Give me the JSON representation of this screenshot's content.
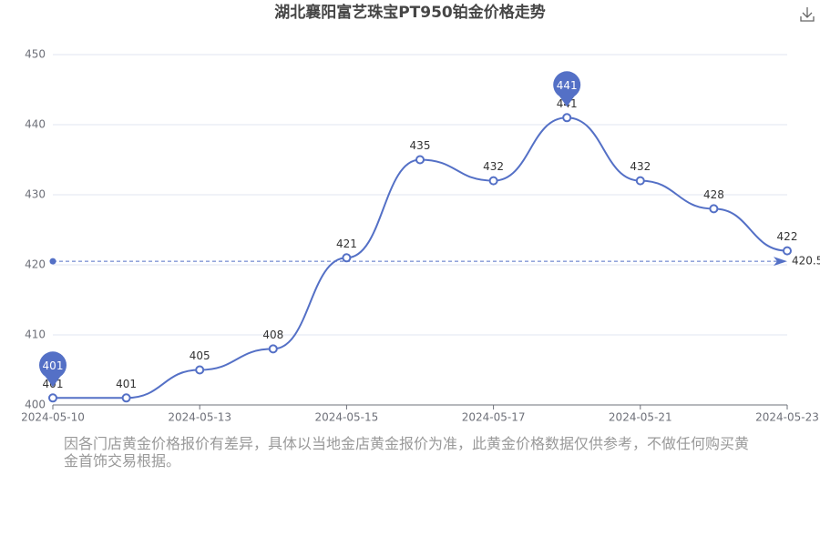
{
  "chart_data": {
    "type": "line",
    "title": "湖北襄阳富艺珠宝PT950铂金价格走势",
    "categories": [
      "2024-05-10",
      null,
      "2024-05-13",
      null,
      "2024-05-15",
      null,
      "2024-05-17",
      null,
      "2024-05-21",
      null,
      "2024-05-23"
    ],
    "values": [
      401,
      401,
      405,
      408,
      421,
      435,
      432,
      441,
      432,
      428,
      422
    ],
    "color": "#5470c6",
    "ylim": [
      400,
      450
    ],
    "yticks": [
      400,
      410,
      420,
      430,
      440,
      450
    ],
    "grid": true,
    "average": 420.5,
    "note": "因各门店黄金价格报价有差异，具体以当地金店黄金报价为准，此黄金价格数据仅供参考，不做任何购买黄金首饰交易根据。"
  }
}
